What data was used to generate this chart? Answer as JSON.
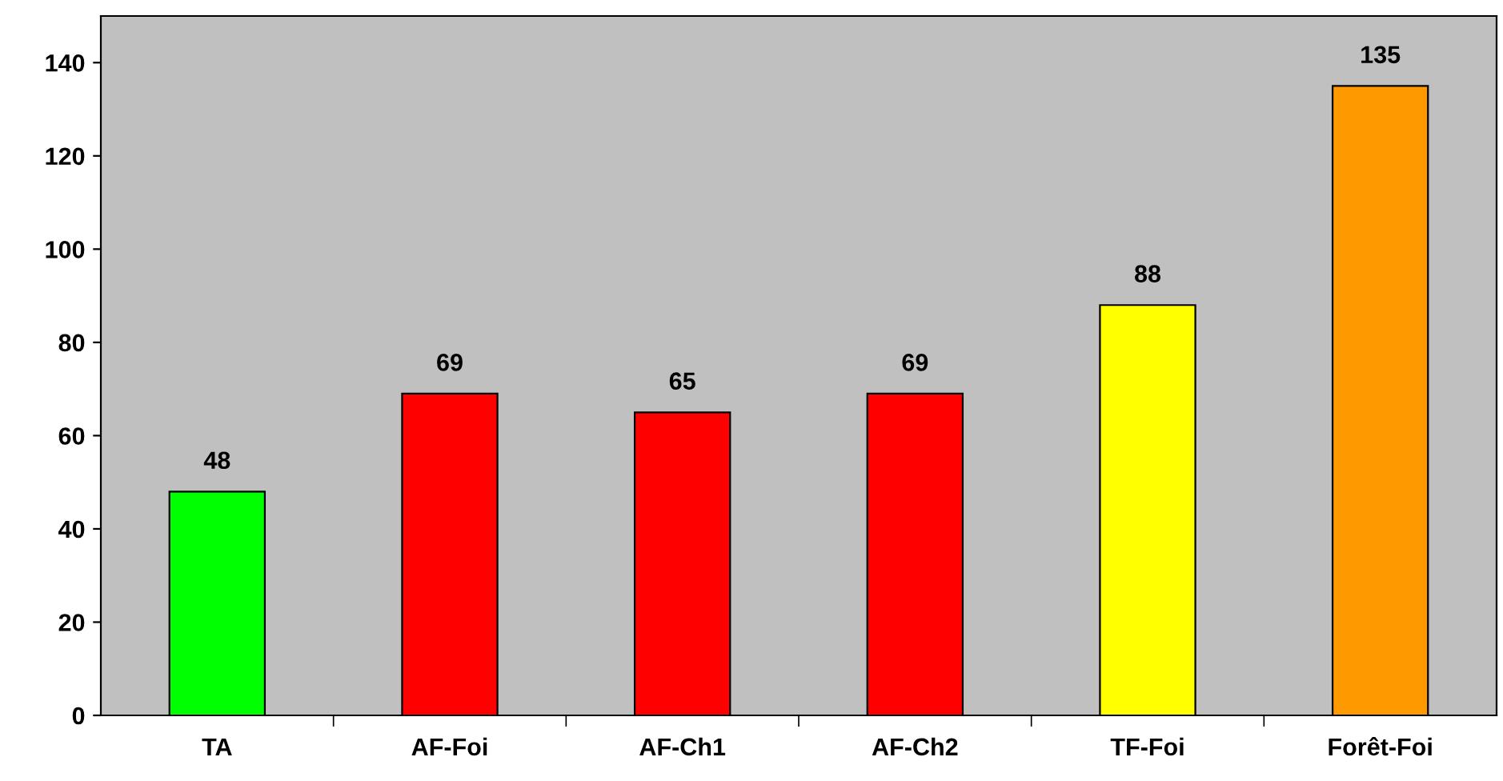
{
  "chart_data": {
    "type": "bar",
    "categories": [
      "TA",
      "AF-Foi",
      "AF-Ch1",
      "AF-Ch2",
      "TF-Foi",
      "Forêt-Foi"
    ],
    "values": [
      48,
      69,
      65,
      69,
      88,
      135
    ],
    "colors": [
      "#00ff00",
      "#ff0000",
      "#ff0000",
      "#ff0000",
      "#ffff00",
      "#ff9900"
    ],
    "ylim": [
      0,
      150
    ],
    "yticks": [
      0,
      20,
      40,
      60,
      80,
      100,
      120,
      140
    ],
    "data_labels": true,
    "grid": false,
    "legend": false
  }
}
